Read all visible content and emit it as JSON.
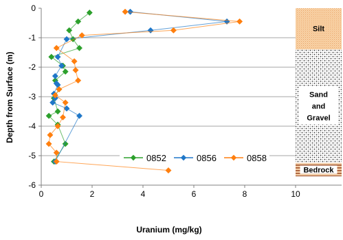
{
  "chart_data": {
    "type": "scatter",
    "xlabel": "Uranium (mg/kg)",
    "ylabel": "Depth from Surface (m)",
    "xlim": [
      0,
      10
    ],
    "ylim": [
      -6,
      0
    ],
    "x_ticks": [
      "0",
      "2",
      "4",
      "6",
      "8",
      "10"
    ],
    "y_ticks": [
      "0",
      "-1",
      "-2",
      "-3",
      "-4",
      "-5",
      "-6"
    ],
    "grid": "horizontal",
    "legend_position": "bottom-center",
    "series": [
      {
        "name": "0852",
        "color": "#2ca02c",
        "marker": "diamond",
        "points": [
          {
            "x": 1.9,
            "y": -0.15
          },
          {
            "x": 1.45,
            "y": -0.45
          },
          {
            "x": 1.1,
            "y": -0.75
          },
          {
            "x": 1.25,
            "y": -1.05
          },
          {
            "x": 1.5,
            "y": -1.35
          },
          {
            "x": 0.4,
            "y": -1.65
          },
          {
            "x": 0.85,
            "y": -1.95
          },
          {
            "x": 0.95,
            "y": -2.15
          },
          {
            "x": 0.55,
            "y": -2.45
          },
          {
            "x": 0.7,
            "y": -2.75
          },
          {
            "x": 0.5,
            "y": -3.05
          },
          {
            "x": 0.65,
            "y": -3.5
          },
          {
            "x": 0.3,
            "y": -3.65
          },
          {
            "x": 0.65,
            "y": -3.95
          },
          {
            "x": 0.95,
            "y": -4.6
          },
          {
            "x": 0.5,
            "y": -5.2
          }
        ]
      },
      {
        "name": "0856",
        "color": "#1f77c8",
        "marker": "diamond",
        "points": [
          {
            "x": 3.5,
            "y": -0.12
          },
          {
            "x": 7.3,
            "y": -0.45
          },
          {
            "x": 4.3,
            "y": -0.75
          },
          {
            "x": 1.0,
            "y": -1.05
          },
          {
            "x": 0.65,
            "y": -1.65
          },
          {
            "x": 0.8,
            "y": -1.95
          },
          {
            "x": 0.55,
            "y": -2.3
          },
          {
            "x": 0.6,
            "y": -2.55
          },
          {
            "x": 0.65,
            "y": -2.6
          },
          {
            "x": 0.5,
            "y": -2.9
          },
          {
            "x": 0.55,
            "y": -3.05
          },
          {
            "x": 0.45,
            "y": -3.2
          },
          {
            "x": 1.0,
            "y": -3.4
          },
          {
            "x": 1.5,
            "y": -3.65
          },
          {
            "x": 0.55,
            "y": -5.2
          }
        ]
      },
      {
        "name": "0858",
        "color": "#ff7f0e",
        "marker": "diamond",
        "points": [
          {
            "x": 3.3,
            "y": -0.12
          },
          {
            "x": 7.8,
            "y": -0.45
          },
          {
            "x": 5.2,
            "y": -0.75
          },
          {
            "x": 1.6,
            "y": -0.92
          },
          {
            "x": 0.6,
            "y": -1.35
          },
          {
            "x": 1.3,
            "y": -1.8
          },
          {
            "x": 1.35,
            "y": -2.1
          },
          {
            "x": 1.45,
            "y": -2.45
          },
          {
            "x": 0.7,
            "y": -2.75
          },
          {
            "x": 0.55,
            "y": -2.95
          },
          {
            "x": 0.95,
            "y": -3.2
          },
          {
            "x": 0.85,
            "y": -3.7
          },
          {
            "x": 0.65,
            "y": -4.0
          },
          {
            "x": 0.35,
            "y": -4.3
          },
          {
            "x": 0.3,
            "y": -4.6
          },
          {
            "x": 0.6,
            "y": -4.9
          },
          {
            "x": 0.6,
            "y": -5.2
          },
          {
            "x": 5.0,
            "y": -5.5
          }
        ]
      }
    ],
    "strata": [
      {
        "label": "Silt",
        "top": 0,
        "bottom": -1.4,
        "fill": "silt"
      },
      {
        "label": "Sand and Gravel",
        "top": -1.4,
        "bottom": -5.25,
        "fill": "gravel"
      },
      {
        "label": "Bedrock",
        "top": -5.25,
        "bottom": -5.7,
        "fill": "bedrock"
      }
    ]
  }
}
